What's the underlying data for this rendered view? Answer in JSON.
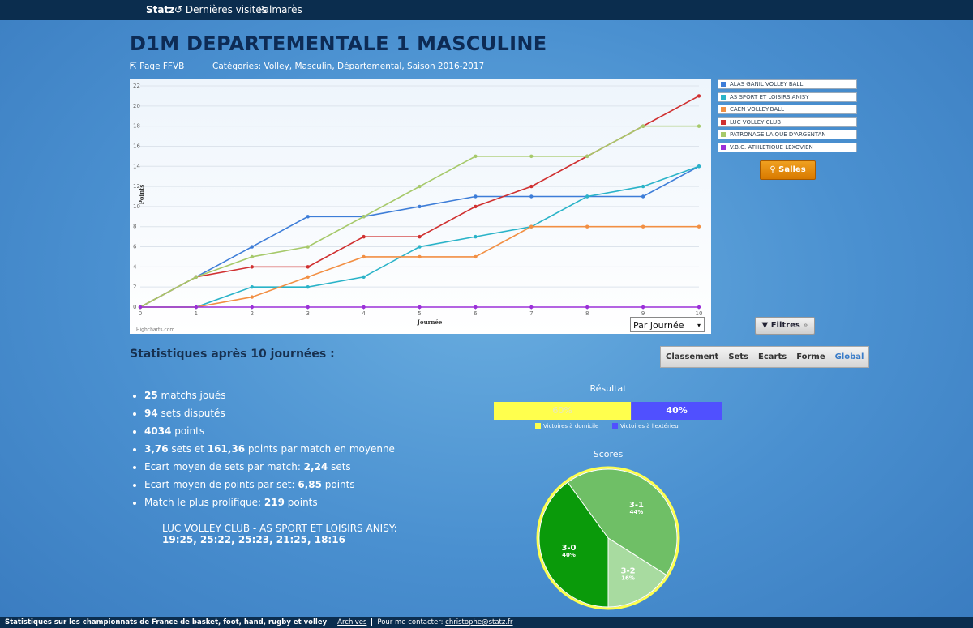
{
  "nav": {
    "brand": "Statz",
    "links": [
      "Dernières visites",
      "Palmarès"
    ]
  },
  "header": {
    "title": "D1M DEPARTEMENTALE 1 MASCULINE",
    "ffvb_link": "Page FFVB",
    "categories": "Catégories: Volley, Masculin, Départemental, Saison 2016-2017"
  },
  "chart_data": [
    {
      "type": "line",
      "xlabel": "Journée",
      "ylabel": "Points",
      "credit": "Highcharts.com",
      "x": [
        0,
        1,
        2,
        3,
        4,
        5,
        6,
        7,
        8,
        9,
        10
      ],
      "xlim": [
        0,
        10
      ],
      "xticks": [
        0,
        1,
        2,
        3,
        4,
        5,
        6,
        7,
        8,
        9,
        10
      ],
      "ylim": [
        0,
        22
      ],
      "yticks": [
        0,
        2,
        4,
        6,
        8,
        10,
        12,
        14,
        16,
        18,
        20,
        22
      ],
      "grid": true,
      "legend": "right",
      "series": [
        {
          "name": "ALAS GANIL VOLLEY BALL",
          "color": "#3d7dd8",
          "values": [
            0,
            3,
            6,
            9,
            9,
            10,
            11,
            11,
            11,
            11,
            14
          ]
        },
        {
          "name": "AS SPORT ET LOISIRS ANISY",
          "color": "#2ab3c8",
          "values": [
            0,
            0,
            2,
            2,
            3,
            6,
            7,
            8,
            11,
            12,
            14
          ]
        },
        {
          "name": "CAEN VOLLEY-BALL",
          "color": "#f28f43",
          "values": [
            0,
            0,
            1,
            3,
            5,
            5,
            5,
            8,
            8,
            8,
            8
          ]
        },
        {
          "name": "LUC VOLLEY CLUB",
          "color": "#d03030",
          "values": [
            0,
            3,
            4,
            4,
            7,
            7,
            10,
            12,
            15,
            18,
            21
          ]
        },
        {
          "name": "PATRONAGE LAIQUE D'ARGENTAN",
          "color": "#a6c96a",
          "values": [
            0,
            3,
            5,
            6,
            9,
            12,
            15,
            15,
            15,
            18,
            18
          ]
        },
        {
          "name": "V.B.C. ATHLETIQUE LEXOVIEN",
          "color": "#9b30d9",
          "values": [
            0,
            0,
            0,
            0,
            0,
            0,
            0,
            0,
            0,
            0,
            0
          ]
        }
      ]
    },
    {
      "type": "bar",
      "title": "Résultat",
      "orientation": "horizontal",
      "stacked": true,
      "categories": [
        null
      ],
      "xlim": [
        0,
        100
      ],
      "series": [
        {
          "name": "Victoires à domicile",
          "color": "#ffff4d",
          "values": [
            60
          ],
          "value_labels": [
            "60%"
          ]
        },
        {
          "name": "Victoires à l'extérieur",
          "color": "#5050ff",
          "values": [
            40
          ],
          "value_labels": [
            "40%"
          ]
        }
      ]
    },
    {
      "type": "pie",
      "title": "Scores",
      "categories": [
        "3-1",
        "3-2",
        "3-0"
      ],
      "values": [
        44,
        16,
        40
      ],
      "value_labels": [
        "44%",
        "16%",
        "40%"
      ],
      "colors": [
        "#6fbf66",
        "#a8dba0",
        "#0a9a0a"
      ]
    }
  ],
  "controls": {
    "period_select": "Par journée",
    "salles_button": "Salles",
    "filtres_button": "Filtres"
  },
  "stats": {
    "heading": "Statistiques après 10 journées :",
    "tabs": [
      "Classement",
      "Sets",
      "Ecarts",
      "Forme",
      "Global"
    ],
    "active_tab": 4,
    "items": [
      [
        {
          "text": "25",
          "bold": true
        },
        {
          "text": " matchs joués",
          "bold": false
        }
      ],
      [
        {
          "text": "94",
          "bold": true
        },
        {
          "text": " sets disputés",
          "bold": false
        }
      ],
      [
        {
          "text": "4034",
          "bold": true
        },
        {
          "text": " points",
          "bold": false
        }
      ],
      [
        {
          "text": "3,76",
          "bold": true
        },
        {
          "text": " sets et ",
          "bold": false
        },
        {
          "text": "161,36",
          "bold": true
        },
        {
          "text": " points par match en moyenne",
          "bold": false
        }
      ],
      [
        {
          "text": "Ecart moyen de sets par match: ",
          "bold": false
        },
        {
          "text": "2,24",
          "bold": true
        },
        {
          "text": " sets",
          "bold": false
        }
      ],
      [
        {
          "text": "Ecart moyen de points par set: ",
          "bold": false
        },
        {
          "text": "6,85",
          "bold": true
        },
        {
          "text": " points",
          "bold": false
        }
      ],
      [
        {
          "text": "Match le plus prolifique: ",
          "bold": false
        },
        {
          "text": "219",
          "bold": true
        },
        {
          "text": " points",
          "bold": false
        }
      ]
    ],
    "match_teams": "LUC VOLLEY CLUB - AS SPORT ET LOISIRS ANISY:",
    "match_scores": "19:25, 25:22, 25:23, 21:25, 18:16"
  },
  "footer": {
    "about": "Statistiques sur les championnats de France de basket, foot, hand, rugby et volley",
    "archives": "Archives",
    "contact": "Pour me contacter:",
    "email": "christophe@statz.fr"
  }
}
